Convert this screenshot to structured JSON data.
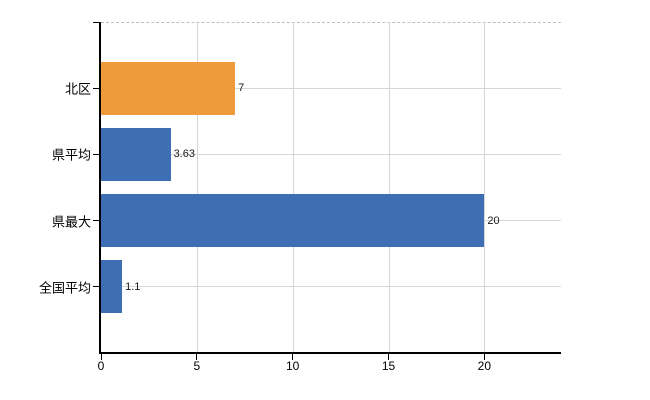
{
  "chart_data": {
    "type": "bar",
    "orientation": "horizontal",
    "title": "",
    "xlabel": "",
    "ylabel": "",
    "categories": [
      "北区",
      "県平均",
      "県最大",
      "全国平均"
    ],
    "values": [
      7,
      3.63,
      20,
      1.1
    ],
    "value_labels": [
      "7",
      "3.63",
      "20",
      "1.1"
    ],
    "bar_colors": [
      "#ee9b3b",
      "#3e6fb4",
      "#3e6fb4",
      "#3e6fb4"
    ],
    "x_tick_values": [
      0,
      5,
      10,
      15,
      20
    ],
    "x_tick_labels": [
      "0",
      "5",
      "10",
      "15",
      "20"
    ],
    "xlim": [
      0,
      24
    ],
    "grid": true,
    "legend_position": "none"
  },
  "colors": {
    "background": "#ffffff",
    "axis": "#000000",
    "h_gridline": "#d3dbd0",
    "v_gridline": "#d6d6da",
    "plot_top_border_dashed": "#bcbfca",
    "bar_blue": "#3e6fb4",
    "bar_orange": "#ee9b3b",
    "text": "#000000"
  }
}
